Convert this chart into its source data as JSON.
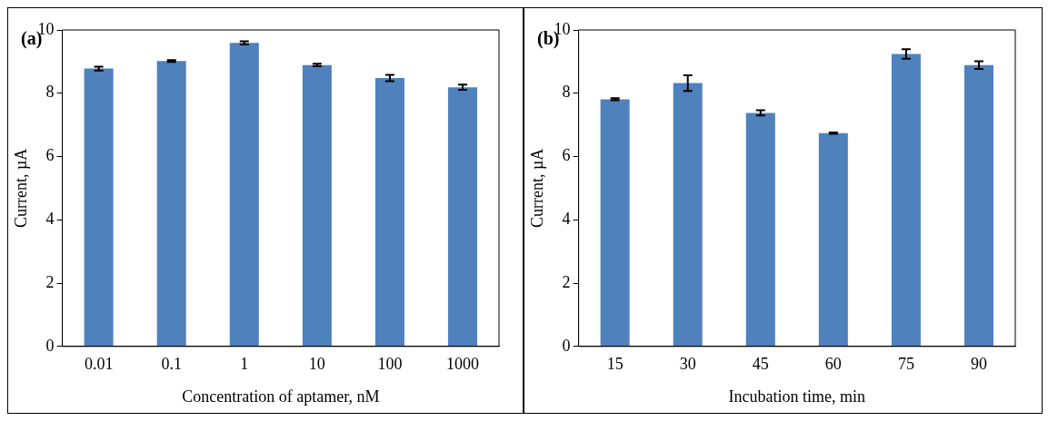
{
  "chart_data": [
    {
      "type": "bar",
      "title": "(a)",
      "xlabel": "Concentration of aptamer, nM",
      "ylabel": "Current, µA",
      "categories": [
        "0.01",
        "0.1",
        "1",
        "10",
        "100",
        "1000"
      ],
      "values": [
        8.78,
        9.02,
        9.59,
        8.89,
        8.48,
        8.19
      ],
      "errors": [
        0.06,
        0.03,
        0.05,
        0.04,
        0.1,
        0.08
      ],
      "color": "#4f81bd",
      "ylim": [
        0,
        10
      ],
      "yticks": [
        0,
        2,
        4,
        6,
        8,
        10
      ],
      "grid": false,
      "legend": false
    },
    {
      "type": "bar",
      "title": "(b)",
      "xlabel": "Incubation time, min",
      "ylabel": "Current, µA",
      "categories": [
        "15",
        "30",
        "45",
        "60",
        "75",
        "90"
      ],
      "values": [
        7.81,
        8.32,
        7.38,
        6.74,
        9.24,
        8.89
      ],
      "errors": [
        0.03,
        0.25,
        0.08,
        0.02,
        0.15,
        0.12
      ],
      "color": "#4f81bd",
      "ylim": [
        0,
        10
      ],
      "yticks": [
        0,
        2,
        4,
        6,
        8,
        10
      ],
      "grid": false,
      "legend": false
    }
  ]
}
